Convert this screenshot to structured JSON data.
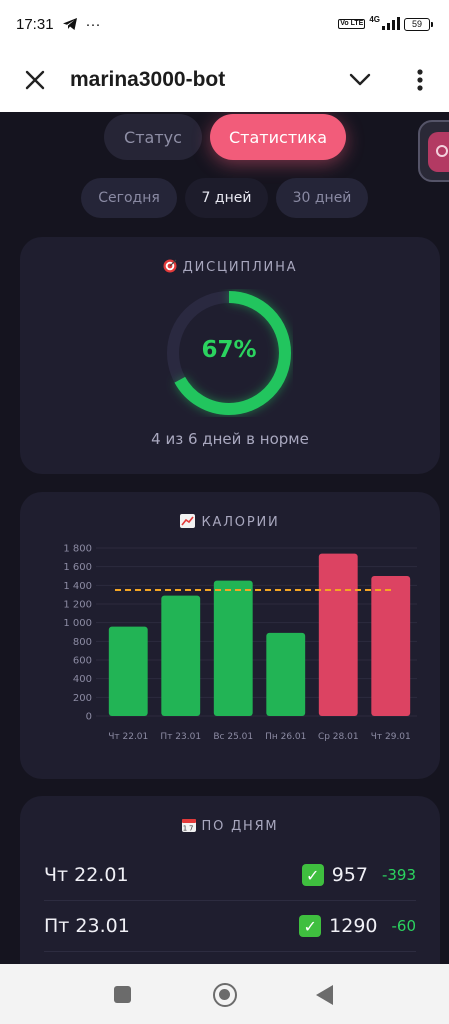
{
  "status_bar": {
    "time": "17:31",
    "more": "···",
    "volte": "Vo LTE",
    "network": "4G",
    "battery": "59"
  },
  "app_bar": {
    "title": "marina3000-bot"
  },
  "main_tabs": [
    {
      "label": "Статус",
      "active": false
    },
    {
      "label": "Статистика",
      "active": true
    }
  ],
  "period_tabs": [
    {
      "label": "Сегодня",
      "active": false
    },
    {
      "label": "7 дней",
      "active": true
    },
    {
      "label": "30 дней",
      "active": false
    }
  ],
  "discipline": {
    "title": "ДИСЦИПЛИНА",
    "percent": 67,
    "percent_label": "67%",
    "subtitle": "4 из 6 дней в норме"
  },
  "calories": {
    "title": "КАЛОРИИ"
  },
  "chart_data": {
    "type": "bar",
    "title": "КАЛОРИИ",
    "categories": [
      "Чт 22.01",
      "Пт 23.01",
      "Вс 25.01",
      "Пн 26.01",
      "Ср 28.01",
      "Чт 29.01"
    ],
    "values": [
      957,
      1290,
      1450,
      890,
      1740,
      1500
    ],
    "bar_colors": [
      "#22b455",
      "#22b455",
      "#22b455",
      "#22b455",
      "#dc4362",
      "#dc4362"
    ],
    "ylim": [
      0,
      1800
    ],
    "yticks": [
      0,
      200,
      400,
      600,
      800,
      1000,
      1200,
      1400,
      1600,
      1800
    ],
    "ytick_labels": [
      "0",
      "200",
      "400",
      "600",
      "800",
      "1 000",
      "1 200",
      "1 400",
      "1 600",
      "1 800"
    ],
    "target_line": 1350,
    "target_color": "#f5a623",
    "grid": true
  },
  "by_days": {
    "title": "ПО ДНЯМ",
    "rows": [
      {
        "day": "Чт 22.01",
        "calories": "957",
        "diff": "-393"
      },
      {
        "day": "Пт 23.01",
        "calories": "1290",
        "diff": "-60"
      }
    ]
  },
  "colors": {
    "accent": "#f25c7a",
    "good": "#2bd35f",
    "bad": "#dc4362",
    "bg": "#15141f",
    "card": "#1f1e2f"
  }
}
